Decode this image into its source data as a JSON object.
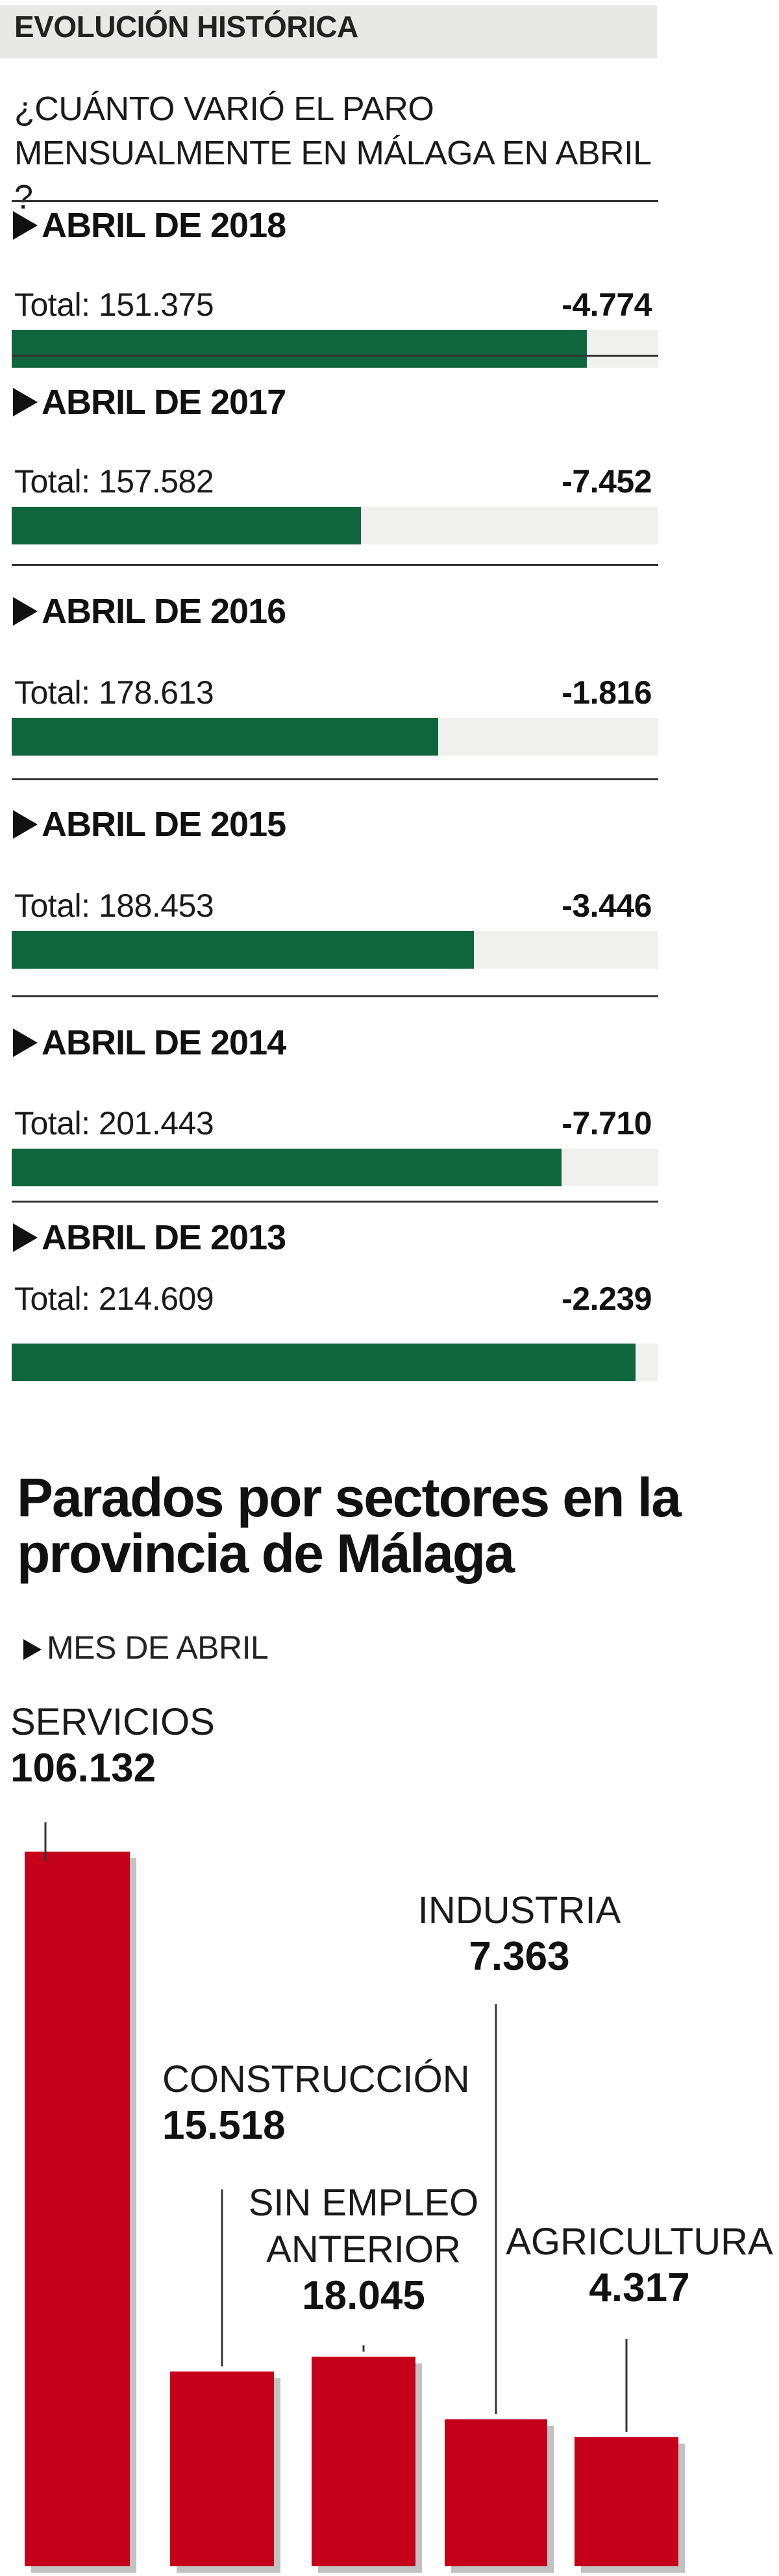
{
  "header": {
    "title": "EVOLUCIÓN HISTÓRICA"
  },
  "question": "¿CUÁNTO VARIÓ EL PARO MENSUALMENTE EN MÁLAGA EN ABRIL ?",
  "years": [
    {
      "label": "ABRIL DE 2018",
      "total_text": "Total: 151.375",
      "total": 151375,
      "change": "-4.774",
      "fill_fraction": 0.89
    },
    {
      "label": "ABRIL DE 2017",
      "total_text": "Total: 157.582",
      "total": 157582,
      "change": "-7.452",
      "fill_fraction": 0.54
    },
    {
      "label": "ABRIL DE 2016",
      "total_text": "Total: 178.613",
      "total": 178613,
      "change": "-1.816",
      "fill_fraction": 0.66
    },
    {
      "label": "ABRIL DE 2015",
      "total_text": "Total: 188.453",
      "total": 188453,
      "change": "-3.446",
      "fill_fraction": 0.715
    },
    {
      "label": "ABRIL DE 2014",
      "total_text": "Total: 201.443",
      "total": 201443,
      "change": "-7.710",
      "fill_fraction": 0.85
    },
    {
      "label": "ABRIL DE 2013",
      "total_text": "Total: 214.609",
      "total": 214609,
      "change": "-2.239",
      "fill_fraction": 0.965
    }
  ],
  "chart_data": {
    "type": "bar",
    "title": "Parados por sectores en la provincia de Málaga",
    "subtitle": "MES DE ABRIL",
    "categories": [
      "SERVICIOS",
      "CONSTRUCCIÓN",
      "SIN EMPLEO ANTERIOR",
      "INDUSTRIA",
      "AGRICULTURA"
    ],
    "category_lines": [
      [
        "SERVICIOS"
      ],
      [
        "CONSTRUCCIÓN"
      ],
      [
        "SIN EMPLEO",
        "ANTERIOR"
      ],
      [
        "INDUSTRIA"
      ],
      [
        "AGRICULTURA"
      ]
    ],
    "values": [
      106132,
      15518,
      18045,
      7363,
      4317
    ],
    "value_labels": [
      "106.132",
      "15.518",
      "18.045",
      "7.363",
      "4.317"
    ],
    "colors": {
      "bar": "#c4001a",
      "shadow": "#9a9a9a"
    }
  }
}
